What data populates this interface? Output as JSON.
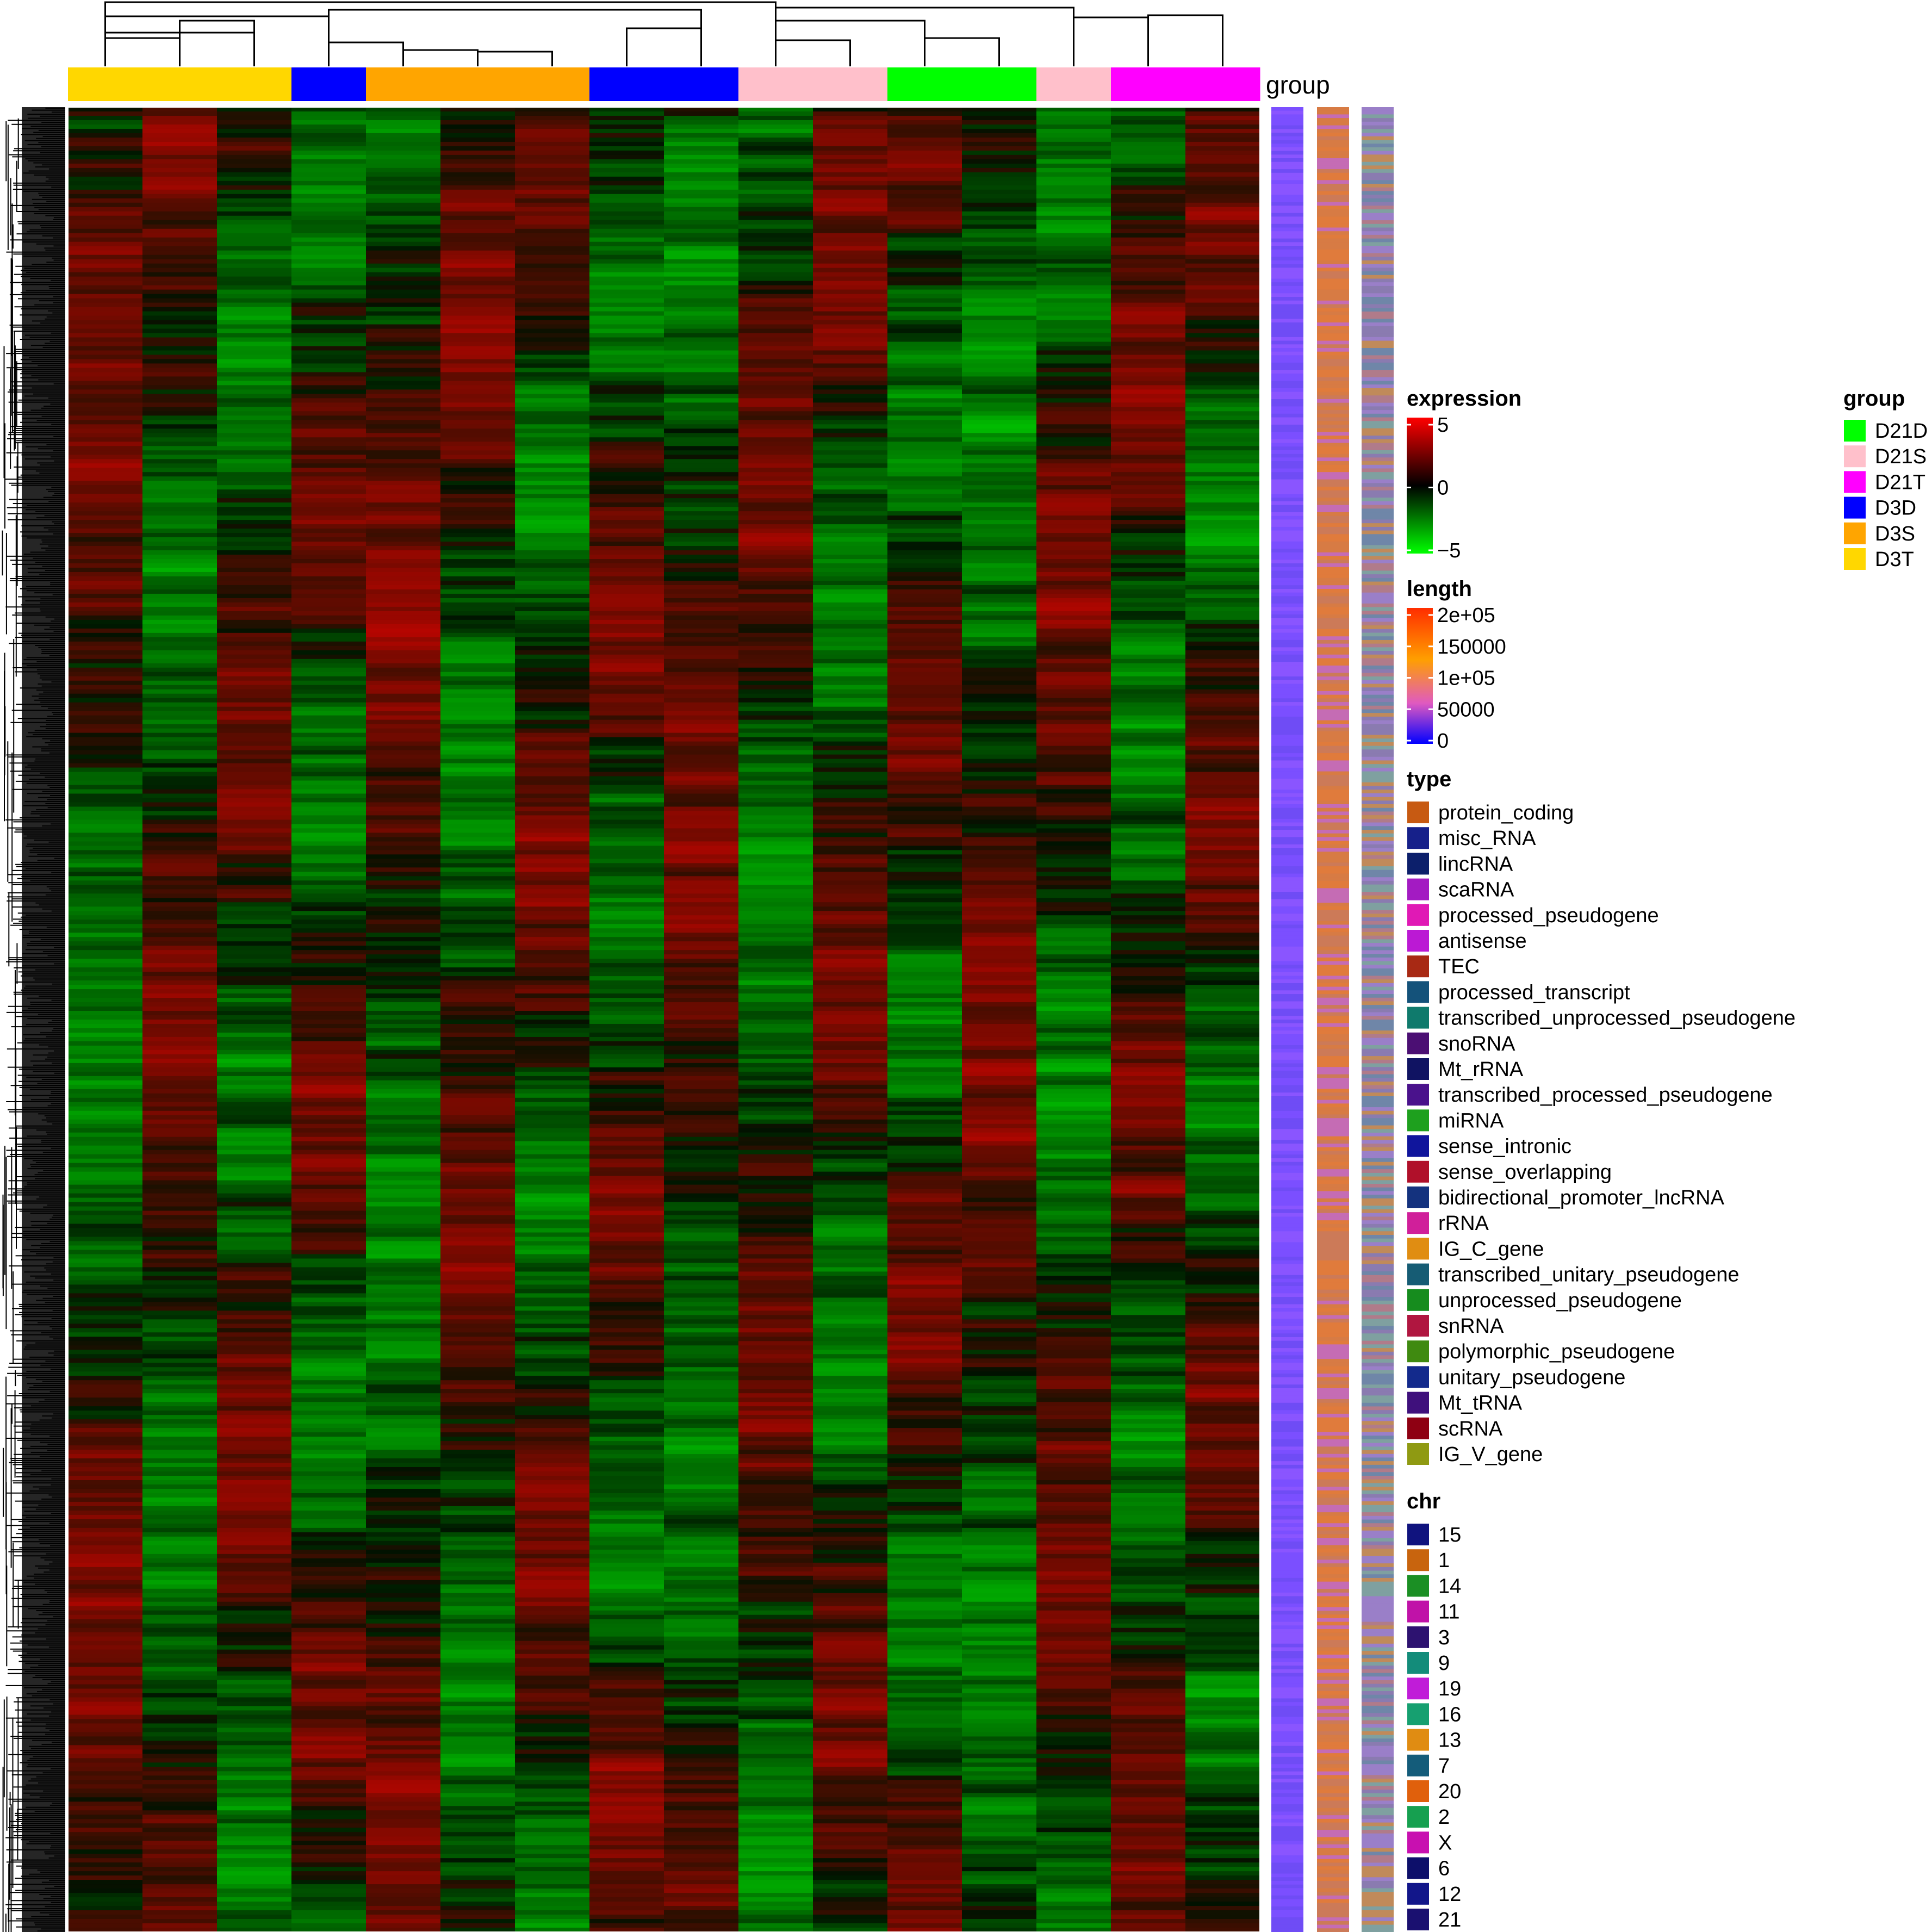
{
  "chart_data": {
    "type": "heatmap",
    "columns": [
      {
        "group": "D3T"
      },
      {
        "group": "D3T"
      },
      {
        "group": "D3T"
      },
      {
        "group": "D3D"
      },
      {
        "group": "D3S"
      },
      {
        "group": "D3S"
      },
      {
        "group": "D3S"
      },
      {
        "group": "D3D"
      },
      {
        "group": "D3D"
      },
      {
        "group": "D21S"
      },
      {
        "group": "D21S"
      },
      {
        "group": "D21D"
      },
      {
        "group": "D21D"
      },
      {
        "group": "D21S"
      },
      {
        "group": "D21T"
      },
      {
        "group": "D21T"
      }
    ],
    "column_annotation_label": "group",
    "row_annotations": [
      "length",
      "type",
      "chr"
    ],
    "n_rows_approx": 4000,
    "legends": {
      "expression": {
        "title": "expression",
        "ticks": [
          "5",
          "0",
          "−5"
        ],
        "range": [
          -5,
          5
        ],
        "colors": [
          "#ff0000",
          "#000000",
          "#00ff00"
        ]
      },
      "length": {
        "title": "length",
        "ticks": [
          "2e+05",
          "150000",
          "1e+05",
          "50000",
          "0"
        ],
        "range": [
          0,
          200000
        ],
        "colors": [
          "#ff2d00",
          "#ff9f00",
          "#e05ac0",
          "#0000ff"
        ]
      },
      "type": {
        "title": "type",
        "items": [
          {
            "label": "protein_coding",
            "color": "#c75a12"
          },
          {
            "label": "misc_RNA",
            "color": "#16208a"
          },
          {
            "label": "lincRNA",
            "color": "#0c1f6b"
          },
          {
            "label": "scaRNA",
            "color": "#a31bc2"
          },
          {
            "label": "processed_pseudogene",
            "color": "#e019b5"
          },
          {
            "label": "antisense",
            "color": "#bb19d4"
          },
          {
            "label": "TEC",
            "color": "#a82914"
          },
          {
            "label": "processed_transcript",
            "color": "#14527a"
          },
          {
            "label": "transcribed_unprocessed_pseudogene",
            "color": "#0f7a6c"
          },
          {
            "label": "snoRNA",
            "color": "#4b0f73"
          },
          {
            "label": "Mt_rRNA",
            "color": "#101362"
          },
          {
            "label": "transcribed_processed_pseudogene",
            "color": "#4a128c"
          },
          {
            "label": "miRNA",
            "color": "#1ea01e"
          },
          {
            "label": "sense_intronic",
            "color": "#10159c"
          },
          {
            "label": "sense_overlapping",
            "color": "#b0102a"
          },
          {
            "label": "bidirectional_promoter_lncRNA",
            "color": "#14327e"
          },
          {
            "label": "rRNA",
            "color": "#d01f9a"
          },
          {
            "label": "IG_C_gene",
            "color": "#e08d12"
          },
          {
            "label": "transcribed_unitary_pseudogene",
            "color": "#165c74"
          },
          {
            "label": "unprocessed_pseudogene",
            "color": "#168c1e"
          },
          {
            "label": "snRNA",
            "color": "#b01640"
          },
          {
            "label": "polymorphic_pseudogene",
            "color": "#3f8a10"
          },
          {
            "label": "unitary_pseudogene",
            "color": "#132a8c"
          },
          {
            "label": "Mt_tRNA",
            "color": "#3f107c"
          },
          {
            "label": "scRNA",
            "color": "#8e0012"
          },
          {
            "label": "IG_V_gene",
            "color": "#8f9a12"
          }
        ]
      },
      "chr": {
        "title": "chr",
        "items": [
          {
            "label": "15",
            "color": "#10137e"
          },
          {
            "label": "1",
            "color": "#c8640e"
          },
          {
            "label": "14",
            "color": "#1b8f24"
          },
          {
            "label": "11",
            "color": "#c012a8"
          },
          {
            "label": "3",
            "color": "#2d1270"
          },
          {
            "label": "9",
            "color": "#138c7a"
          },
          {
            "label": "19",
            "color": "#c01cd8"
          },
          {
            "label": "16",
            "color": "#16a070"
          },
          {
            "label": "13",
            "color": "#e08c12"
          },
          {
            "label": "7",
            "color": "#145c7a"
          },
          {
            "label": "20",
            "color": "#e0600c"
          },
          {
            "label": "2",
            "color": "#16a050"
          },
          {
            "label": "X",
            "color": "#c810b0"
          },
          {
            "label": "6",
            "color": "#0d0f6a"
          },
          {
            "label": "12",
            "color": "#12168a"
          },
          {
            "label": "21",
            "color": "#1a1070"
          }
        ]
      },
      "group": {
        "title": "group",
        "items": [
          {
            "label": "D21D",
            "color": "#00ff00"
          },
          {
            "label": "D21S",
            "color": "#ffc0cb"
          },
          {
            "label": "D21T",
            "color": "#ff00ff"
          },
          {
            "label": "D3D",
            "color": "#0000ff"
          },
          {
            "label": "D3S",
            "color": "#ffa500"
          },
          {
            "label": "D3T",
            "color": "#ffd700"
          }
        ]
      }
    }
  }
}
